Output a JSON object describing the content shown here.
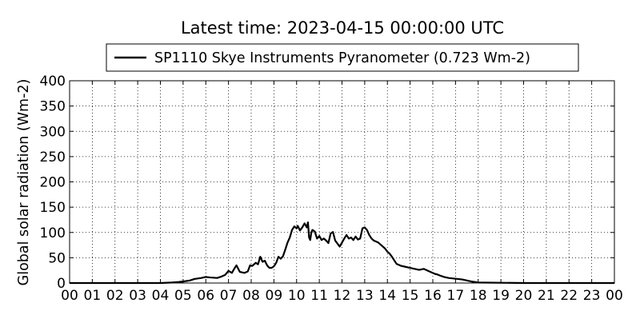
{
  "chart_data": {
    "type": "line",
    "title": "Latest time: 2023-04-15 00:00:00 UTC",
    "xlabel": "",
    "ylabel": "Global solar radiation (Wm-2)",
    "xlim": [
      0,
      24
    ],
    "ylim": [
      0,
      400
    ],
    "x_ticks": [
      "00",
      "01",
      "02",
      "03",
      "04",
      "05",
      "06",
      "07",
      "08",
      "09",
      "10",
      "11",
      "12",
      "13",
      "14",
      "15",
      "16",
      "17",
      "18",
      "19",
      "20",
      "21",
      "22",
      "23",
      "00"
    ],
    "y_ticks": [
      0,
      50,
      100,
      150,
      200,
      250,
      300,
      350,
      400
    ],
    "grid": true,
    "legend": {
      "position": "top-center"
    },
    "series": [
      {
        "name": "SP1110 Skye Instruments Pyranometer (0.723 Wm-2)",
        "color": "#000000",
        "x": [
          0,
          4.0,
          4.5,
          4.8,
          5.0,
          5.3,
          5.5,
          5.8,
          6.0,
          6.2,
          6.5,
          6.7,
          6.85,
          7.0,
          7.15,
          7.25,
          7.35,
          7.5,
          7.7,
          7.85,
          7.95,
          8.05,
          8.2,
          8.3,
          8.4,
          8.5,
          8.6,
          8.7,
          8.8,
          8.9,
          9.0,
          9.1,
          9.2,
          9.3,
          9.4,
          9.5,
          9.6,
          9.7,
          9.8,
          9.9,
          10.0,
          10.05,
          10.15,
          10.25,
          10.35,
          10.45,
          10.5,
          10.55,
          10.6,
          10.65,
          10.7,
          10.8,
          10.9,
          11.0,
          11.1,
          11.2,
          11.3,
          11.4,
          11.5,
          11.6,
          11.7,
          11.8,
          11.9,
          12.0,
          12.1,
          12.2,
          12.3,
          12.4,
          12.5,
          12.6,
          12.7,
          12.8,
          12.9,
          13.0,
          13.1,
          13.2,
          13.3,
          13.4,
          13.5,
          13.6,
          13.7,
          13.8,
          13.9,
          14.0,
          14.1,
          14.2,
          14.3,
          14.4,
          14.5,
          14.6,
          14.7,
          14.8,
          14.9,
          15.0,
          15.2,
          15.4,
          15.6,
          15.8,
          16.0,
          16.1,
          16.2,
          16.3,
          16.5,
          16.7,
          16.9,
          17.1,
          17.3,
          17.5,
          17.7,
          18.0,
          20.0,
          24.0
        ],
        "values": [
          0,
          0,
          1,
          2,
          3,
          5,
          8,
          10,
          12,
          11,
          10,
          13,
          16,
          24,
          20,
          28,
          35,
          22,
          20,
          23,
          35,
          34,
          40,
          37,
          52,
          42,
          44,
          35,
          30,
          30,
          33,
          40,
          52,
          48,
          53,
          66,
          80,
          90,
          105,
          112,
          108,
          113,
          104,
          110,
          118,
          110,
          120,
          90,
          85,
          100,
          105,
          102,
          88,
          93,
          85,
          88,
          84,
          79,
          98,
          101,
          84,
          78,
          72,
          80,
          88,
          95,
          88,
          90,
          85,
          92,
          86,
          88,
          108,
          110,
          105,
          95,
          88,
          84,
          82,
          80,
          76,
          72,
          68,
          62,
          58,
          52,
          45,
          38,
          36,
          34,
          33,
          32,
          31,
          30,
          28,
          26,
          28,
          24,
          20,
          18,
          17,
          15,
          12,
          10,
          9,
          8,
          7,
          5,
          3,
          1,
          0,
          0
        ]
      }
    ]
  }
}
